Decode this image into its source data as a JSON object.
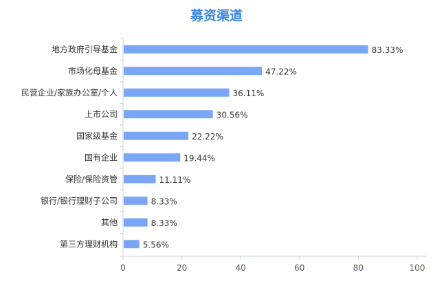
{
  "chart_data": {
    "type": "bar",
    "orientation": "horizontal",
    "title": "募资渠道",
    "categories": [
      "地方政府引导基金",
      "市场化母基金",
      "民营企业/家族办公室/个人",
      "上市公司",
      "国家级基金",
      "国有企业",
      "保险/保险资管",
      "银行/银行理财子公司",
      "其他",
      "第三方理财机构"
    ],
    "values": [
      83.33,
      47.22,
      36.11,
      30.56,
      22.22,
      19.44,
      11.11,
      8.33,
      8.33,
      5.56
    ],
    "value_labels": [
      "83.33%",
      "47.22%",
      "36.11%",
      "30.56%",
      "22.22%",
      "19.44%",
      "11.11%",
      "8.33%",
      "8.33%",
      "5.56%"
    ],
    "xlim": [
      0,
      100
    ],
    "x_ticks": [
      0,
      20,
      40,
      60,
      80,
      100
    ],
    "grid": false,
    "legend": "none",
    "colors": {
      "bar": "#7aa6f6",
      "title": "#3a86e6",
      "axis": "#c9d3df",
      "text": "#333333",
      "tick": "#555555"
    }
  }
}
